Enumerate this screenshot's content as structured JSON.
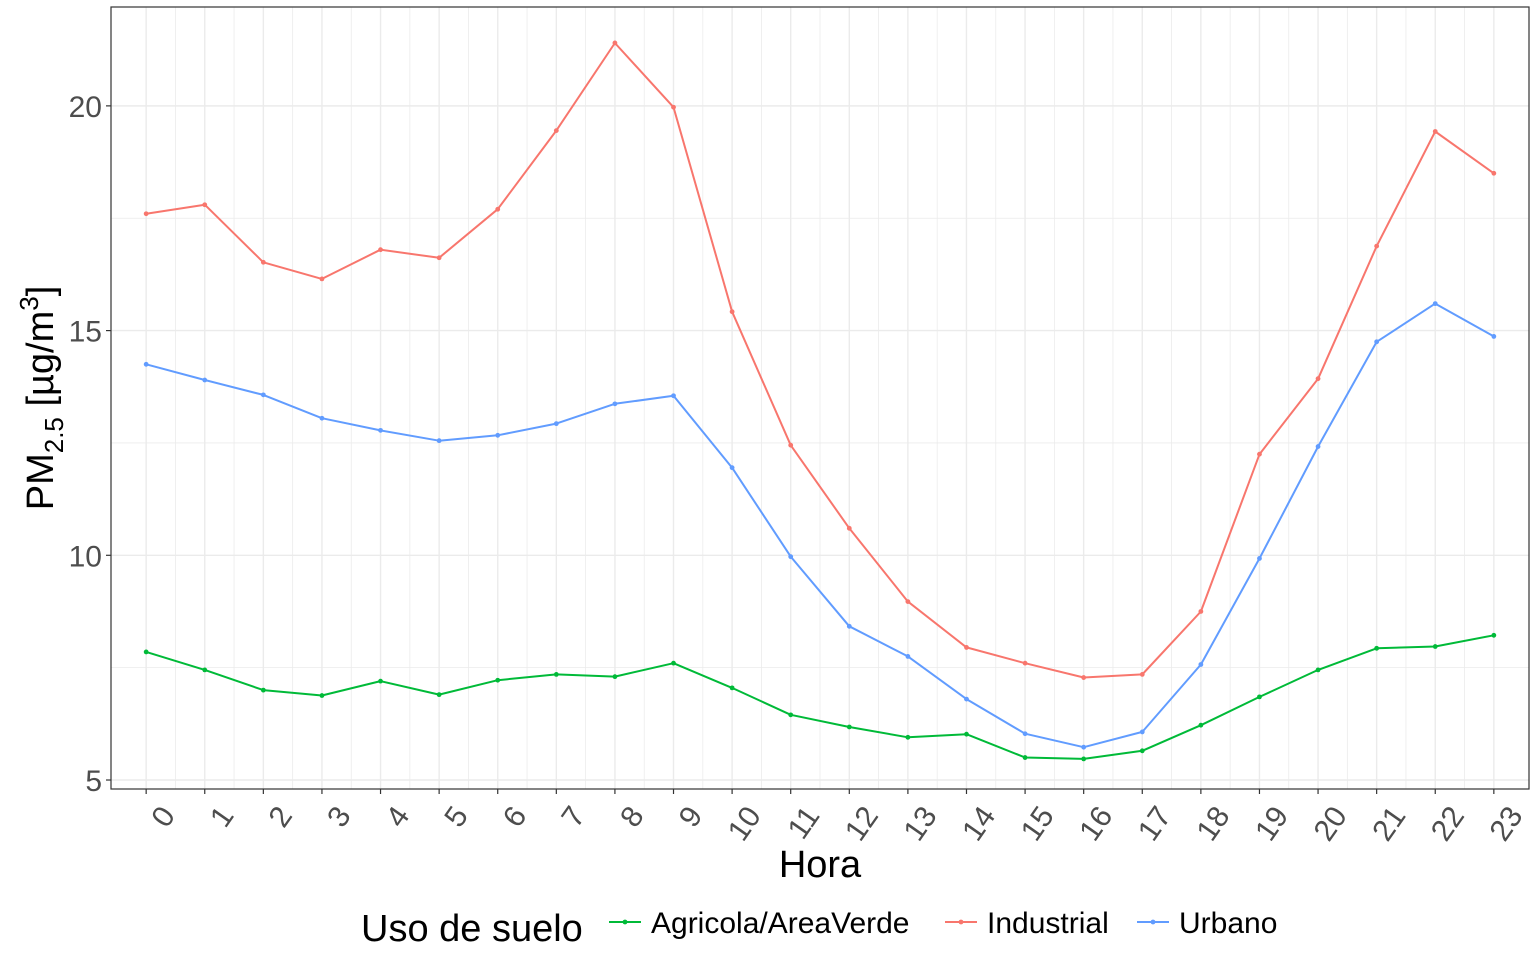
{
  "chart_data": {
    "type": "line",
    "title": "",
    "xlabel": "Hora",
    "ylabel": {
      "main": "PM",
      "subscript": "2.5",
      "unit_open": " [µg/m",
      "unit_sup": "3",
      "unit_close": "]"
    },
    "x": [
      0,
      1,
      2,
      3,
      4,
      5,
      6,
      7,
      8,
      9,
      10,
      11,
      12,
      13,
      14,
      15,
      16,
      17,
      18,
      19,
      20,
      21,
      22,
      23
    ],
    "x_tick_labels": [
      "0",
      "1",
      "2",
      "3",
      "4",
      "5",
      "6",
      "7",
      "8",
      "9",
      "10",
      "11",
      "12",
      "13",
      "14",
      "15",
      "16",
      "17",
      "18",
      "19",
      "20",
      "21",
      "22",
      "23"
    ],
    "xlim": [
      -0.6,
      23.6
    ],
    "ylim": [
      4.8,
      22.2
    ],
    "y_ticks": [
      5,
      10,
      15,
      20
    ],
    "y_tick_labels": [
      "5",
      "10",
      "15",
      "20"
    ],
    "grid": true,
    "legend": {
      "title": "Uso de suelo",
      "placement": "bottom"
    },
    "series": [
      {
        "name": "Agricola/AreaVerde",
        "color": "#00ba38",
        "values": [
          7.85,
          7.45,
          7.0,
          6.88,
          7.2,
          6.9,
          7.22,
          7.35,
          7.3,
          7.6,
          7.05,
          6.45,
          6.18,
          5.95,
          6.02,
          5.5,
          5.47,
          5.65,
          6.22,
          6.85,
          7.45,
          7.93,
          7.97,
          8.22
        ]
      },
      {
        "name": "Industrial",
        "color": "#f8766d",
        "values": [
          17.6,
          17.8,
          16.52,
          16.15,
          16.8,
          16.62,
          17.7,
          19.45,
          21.4,
          19.97,
          15.42,
          12.45,
          10.6,
          8.97,
          7.95,
          7.6,
          7.28,
          7.35,
          8.75,
          12.25,
          13.93,
          16.88,
          19.43,
          18.5
        ]
      },
      {
        "name": "Urbano",
        "color": "#619cff",
        "values": [
          14.25,
          13.9,
          13.57,
          13.05,
          12.78,
          12.55,
          12.67,
          12.93,
          13.37,
          13.55,
          11.95,
          9.97,
          8.42,
          7.75,
          6.8,
          6.03,
          5.73,
          6.07,
          7.57,
          9.93,
          12.42,
          14.75,
          15.6,
          14.87
        ]
      }
    ]
  }
}
